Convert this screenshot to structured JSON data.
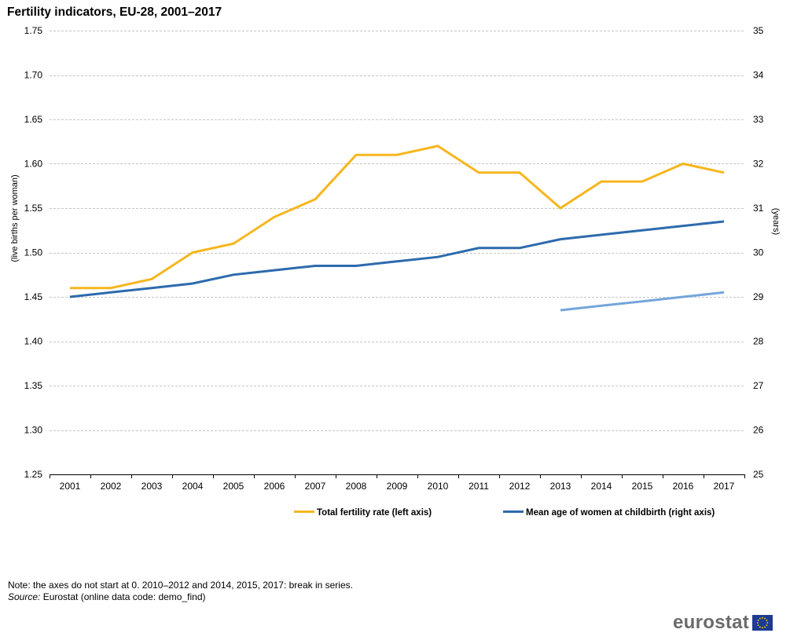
{
  "title": "Fertility indicators, EU-28, 2001–2017",
  "note": "Note: the axes do not start at 0. 2010–2012 and 2014, 2015, 2017: break in series.",
  "source": {
    "label": "Source:",
    "text": " Eurostat (online data code: demo_find)"
  },
  "logo": {
    "text": "eurostat"
  },
  "colors": {
    "fertility": "#F6B61E",
    "age": "#2D6AAD",
    "age_new_series": "#74A5DB",
    "grid": "#B4B4B4",
    "axis": "#000000"
  },
  "chart_data": {
    "type": "line",
    "categories": [
      "2001",
      "2002",
      "2003",
      "2004",
      "2005",
      "2006",
      "2007",
      "2008",
      "2009",
      "2010",
      "2011",
      "2012",
      "2013",
      "2014",
      "2015",
      "2016",
      "2017"
    ],
    "left_axis": {
      "label": "(live births per woman)",
      "ylim": [
        1.25,
        1.75
      ],
      "ticks": [
        "1.25",
        "1.30",
        "1.35",
        "1.40",
        "1.45",
        "1.50",
        "1.55",
        "1.60",
        "1.65",
        "1.70",
        "1.75"
      ]
    },
    "right_axis": {
      "label": "(years)",
      "ylim": [
        25,
        35
      ],
      "ticks": [
        "25",
        "26",
        "27",
        "28",
        "29",
        "30",
        "31",
        "32",
        "33",
        "34",
        "35"
      ]
    },
    "series": [
      {
        "name": "Total fertility rate (left axis)",
        "axis": "left",
        "color": "#F6B61E",
        "values": [
          1.46,
          1.46,
          1.47,
          1.5,
          1.51,
          1.54,
          1.56,
          1.61,
          1.61,
          1.62,
          1.59,
          1.59,
          1.55,
          1.58,
          1.58,
          1.6,
          1.59
        ]
      },
      {
        "name": "Mean age of women at childbirth (right axis)",
        "axis": "right",
        "color": "#2D6AAD",
        "values": [
          29.0,
          29.1,
          29.2,
          29.3,
          29.5,
          29.6,
          29.7,
          29.7,
          29.8,
          29.9,
          30.1,
          30.1,
          30.3,
          30.4,
          30.5,
          30.6,
          30.7
        ]
      },
      {
        "axis": "right",
        "color": "#74A5DB",
        "values": [
          null,
          null,
          null,
          null,
          null,
          null,
          null,
          null,
          null,
          null,
          null,
          null,
          28.7,
          28.8,
          28.9,
          29.0,
          29.1
        ]
      }
    ],
    "legend_position": "bottom",
    "grid": true
  }
}
